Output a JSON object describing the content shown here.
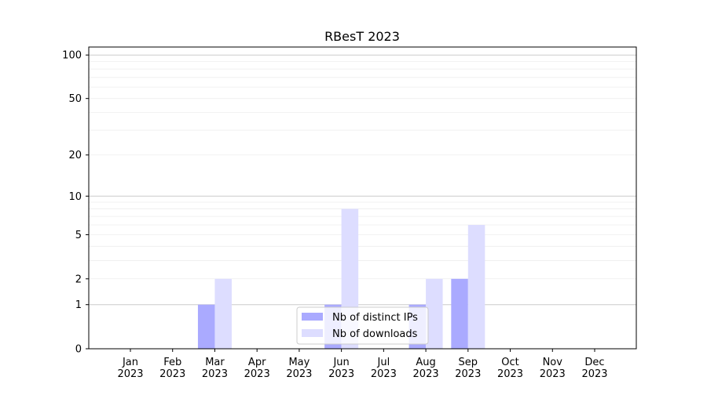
{
  "chart_data": {
    "type": "bar",
    "title": "RBesT 2023",
    "xlabel": "",
    "ylabel": "",
    "yscale": "log(1+y)",
    "ylim": [
      0,
      113.5
    ],
    "yticks": [
      0,
      1,
      2,
      5,
      10,
      20,
      50,
      100
    ],
    "ytick_labels": [
      "0",
      "1",
      "2",
      "5",
      "10",
      "20",
      "50",
      "100"
    ],
    "grid": "horizontal major and minor",
    "legend_position": "bottom-center",
    "categories": [
      "Jan\n2023",
      "Feb\n2023",
      "Mar\n2023",
      "Apr\n2023",
      "May\n2023",
      "Jun\n2023",
      "Jul\n2023",
      "Aug\n2023",
      "Sep\n2023",
      "Oct\n2023",
      "Nov\n2023",
      "Dec\n2023"
    ],
    "series": [
      {
        "name": "Nb of distinct IPs",
        "color": "#aaaaff",
        "values": [
          0,
          0,
          1,
          0,
          0,
          1,
          0,
          1,
          2,
          0,
          0,
          0
        ]
      },
      {
        "name": "Nb of downloads",
        "color": "#ddddff",
        "values": [
          0,
          0,
          2,
          0,
          0,
          8,
          0,
          2,
          6,
          0,
          0,
          0
        ]
      }
    ]
  }
}
